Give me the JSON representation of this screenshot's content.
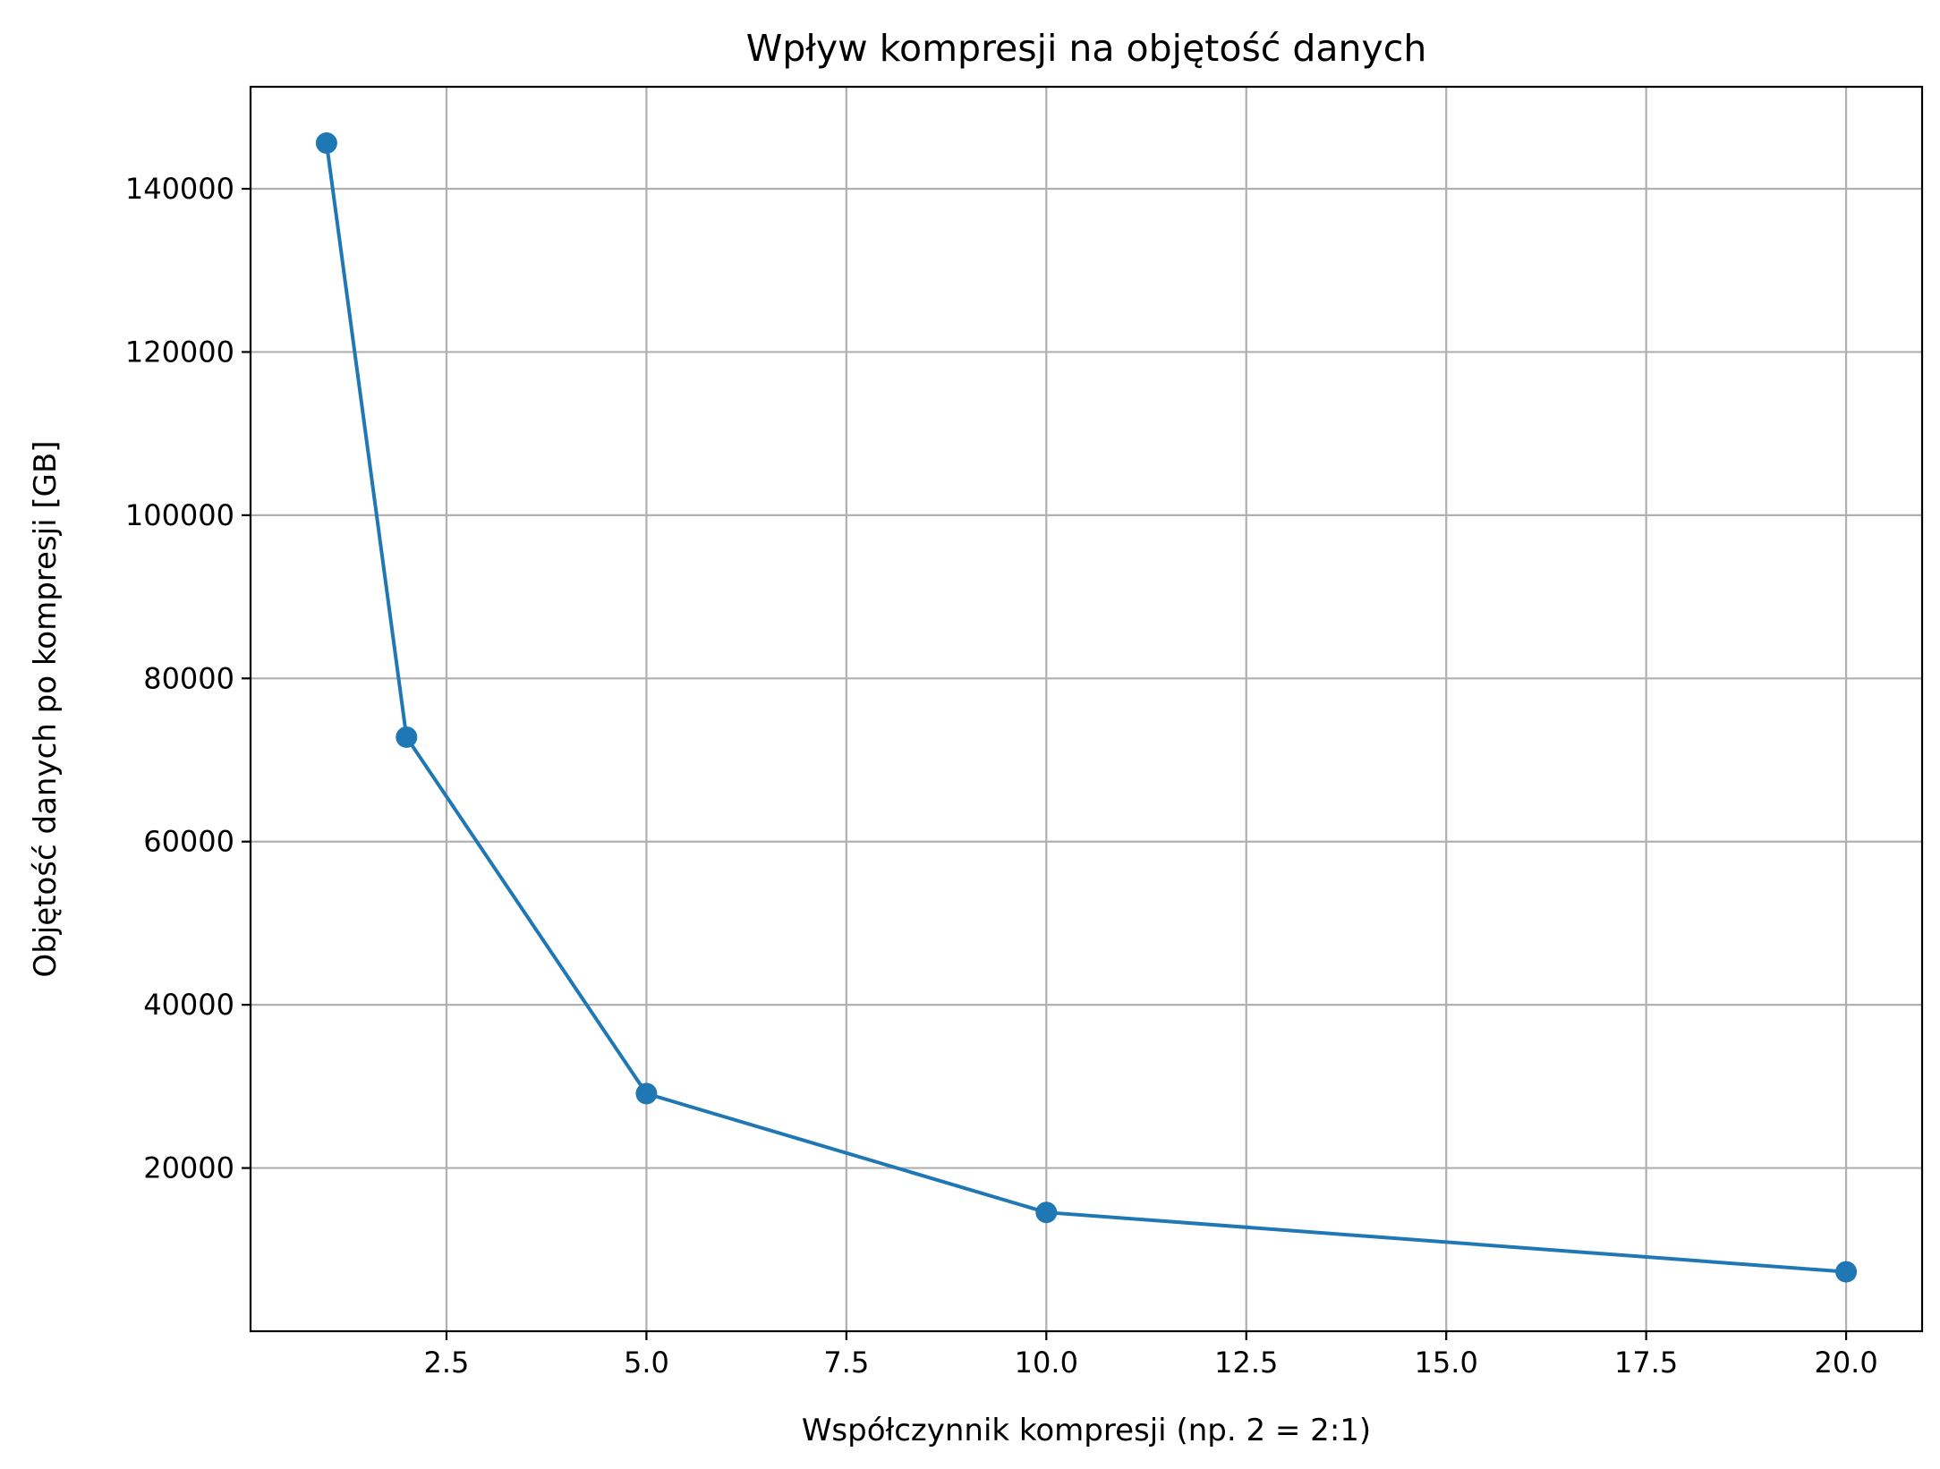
{
  "chart_data": {
    "type": "line",
    "title": "Wpływ kompresji na objętość danych",
    "xlabel": "Współczynnik kompresji (np. 2 = 2:1)",
    "ylabel": "Objętość danych po kompresji [GB]",
    "xlim": [
      0.05,
      20.95
    ],
    "ylim": [
      0,
      152500
    ],
    "xticks": [
      2.5,
      5.0,
      7.5,
      10.0,
      12.5,
      15.0,
      17.5,
      20.0
    ],
    "xtick_labels": [
      "2.5",
      "5.0",
      "7.5",
      "10.0",
      "12.5",
      "15.0",
      "17.5",
      "20.0"
    ],
    "yticks": [
      20000,
      40000,
      60000,
      80000,
      100000,
      120000,
      140000
    ],
    "ytick_labels": [
      "20000",
      "40000",
      "60000",
      "80000",
      "100000",
      "120000",
      "140000"
    ],
    "grid": true,
    "series": [
      {
        "color": "#1f77b4",
        "marker": "circle",
        "x": [
          1,
          2,
          5,
          10,
          20
        ],
        "y": [
          145600,
          72800,
          29120,
          14560,
          7280
        ]
      }
    ]
  }
}
